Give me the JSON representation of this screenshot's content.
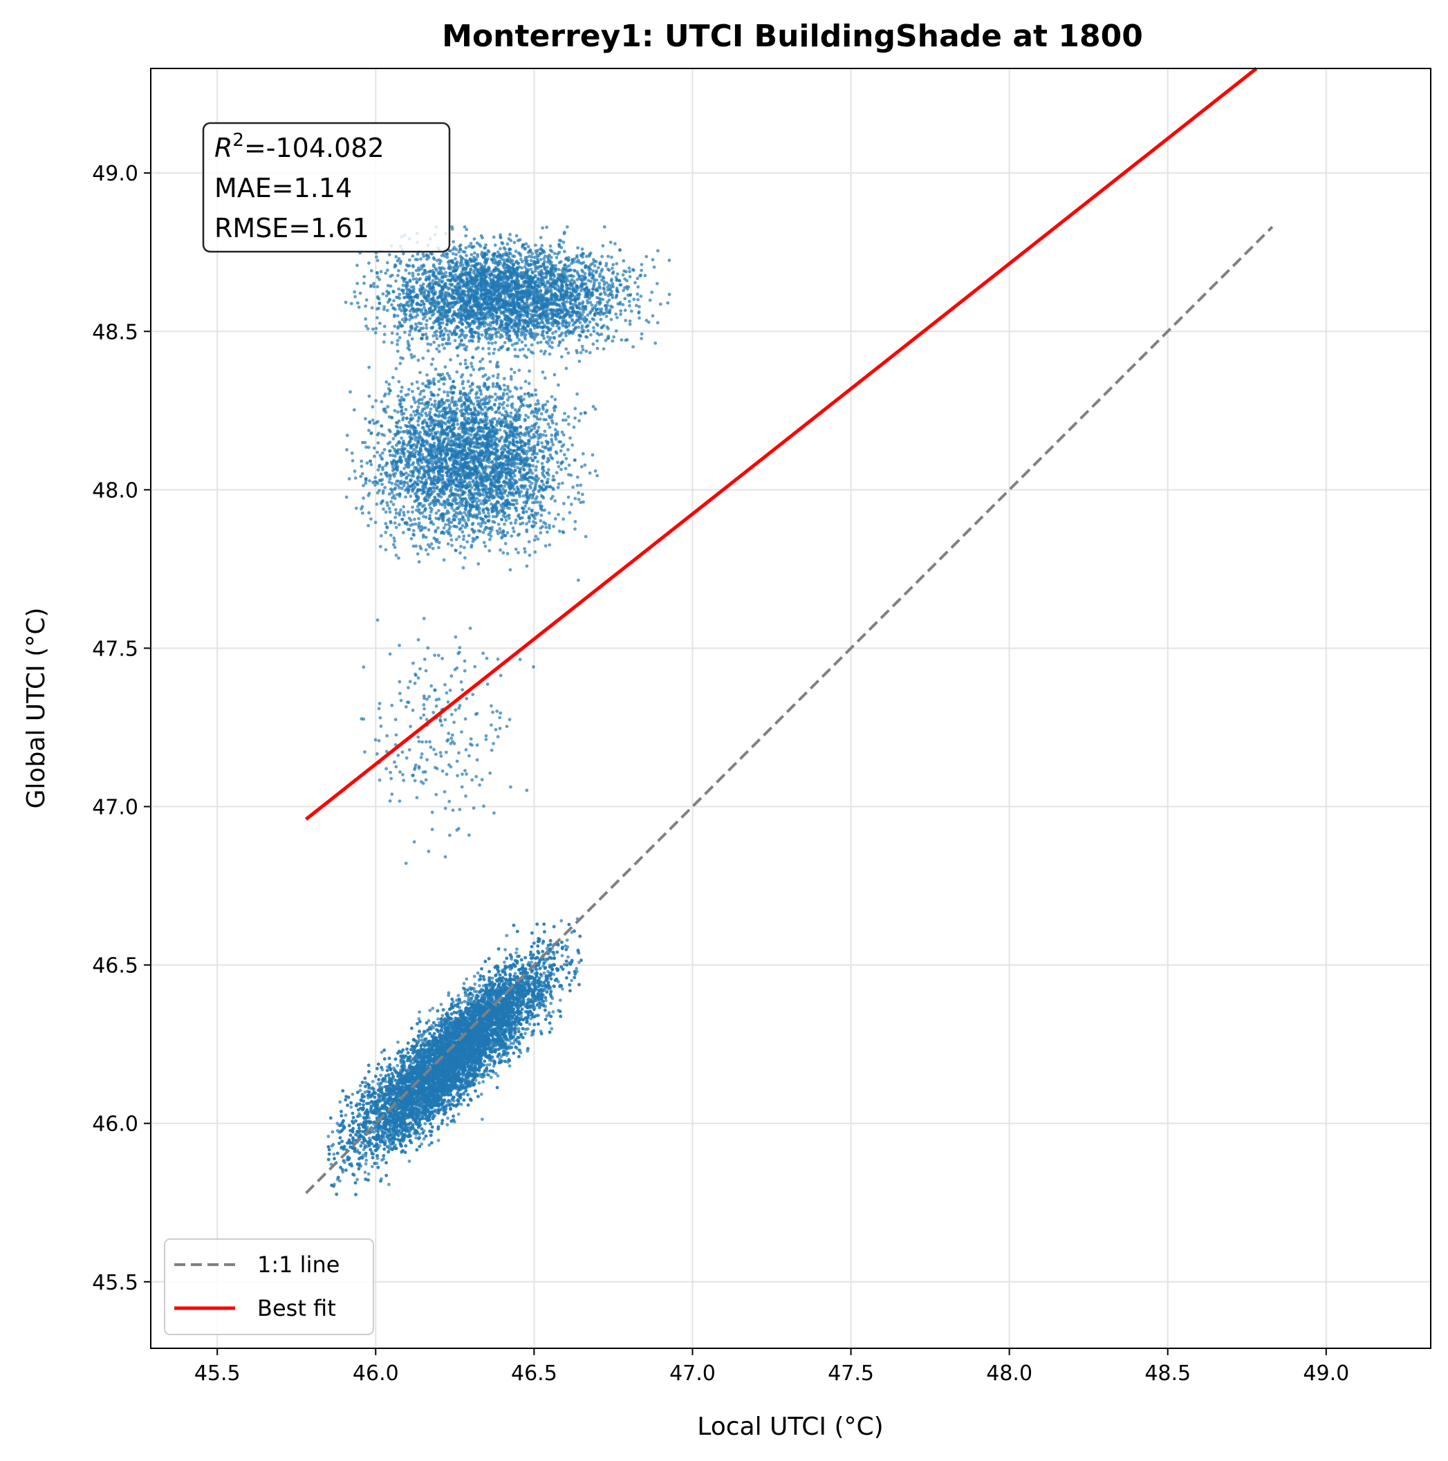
{
  "chart_data": {
    "type": "scatter",
    "title": "Monterrey1: UTCI BuildingShade at 1800",
    "xlabel": "Local UTCI (°C)",
    "ylabel": "Global UTCI (°C)",
    "xlim": [
      45.29,
      49.33
    ],
    "ylim": [
      45.29,
      49.33
    ],
    "xticks": [
      "45.5",
      "46.0",
      "46.5",
      "47.0",
      "47.5",
      "48.0",
      "48.5",
      "49.0"
    ],
    "yticks": [
      "45.5",
      "46.0",
      "46.5",
      "47.0",
      "47.5",
      "48.0",
      "48.5",
      "49.0"
    ],
    "grid": true,
    "stats": {
      "r2_label": "R",
      "r2_sup": "2",
      "r2_value": "=-104.082",
      "mae": "MAE=1.14",
      "rmse": "RMSE=1.61"
    },
    "series": [
      {
        "name": "points",
        "color": "#1f77b4",
        "clusters": [
          {
            "x_range": [
              45.85,
              46.65
            ],
            "y_range": [
              45.82,
              46.62
            ],
            "correlated": true,
            "count": 9000
          },
          {
            "x_range": [
              45.9,
              46.93
            ],
            "y_range": [
              48.4,
              48.83
            ],
            "correlated": false,
            "count": 3500,
            "capped_top": 48.83
          },
          {
            "x_range": [
              45.9,
              46.7
            ],
            "y_range": [
              47.75,
              48.45
            ],
            "correlated": false,
            "count": 3500
          },
          {
            "x_range": [
              45.9,
              46.5
            ],
            "y_range": [
              46.8,
              47.65
            ],
            "correlated": false,
            "count": 220
          }
        ]
      }
    ],
    "lines": [
      {
        "name": "1:1 line",
        "style": "dashed",
        "color": "#808080",
        "x": [
          45.78,
          48.83
        ],
        "y": [
          45.78,
          48.83
        ]
      },
      {
        "name": "Best fit",
        "style": "solid",
        "color": "#ff0000",
        "x": [
          45.78,
          48.78
        ],
        "y": [
          46.96,
          49.33
        ]
      }
    ],
    "legend": {
      "placement": "lower-left",
      "entries": [
        "1:1 line",
        "Best fit"
      ]
    }
  }
}
